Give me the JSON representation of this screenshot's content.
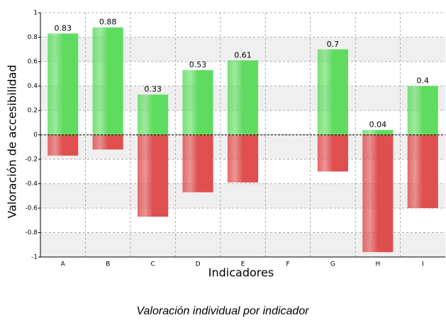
{
  "chart_data": {
    "type": "bar",
    "title": "Valoración individual por indicador",
    "xlabel": "Indicadores",
    "ylabel": "Valoración de accesibilidad",
    "categories": [
      "A",
      "B",
      "C",
      "D",
      "E",
      "F",
      "G",
      "H",
      "I"
    ],
    "series": [
      {
        "color": "#5fdc5f",
        "values": [
          0.83,
          0.88,
          0.33,
          0.53,
          0.61,
          null,
          0.7,
          0.04,
          0.4
        ]
      },
      {
        "color": "#e04f4f",
        "values": [
          -0.17,
          -0.12,
          -0.67,
          -0.47,
          -0.39,
          null,
          -0.3,
          -0.96,
          -0.6
        ]
      }
    ],
    "data_labels_series": 0,
    "ylim": [
      -1,
      1
    ],
    "yticks": [
      -1,
      -0.8,
      -0.6,
      -0.4,
      -0.2,
      0,
      0.2,
      0.4,
      0.6,
      0.8,
      1
    ],
    "grid": true
  }
}
